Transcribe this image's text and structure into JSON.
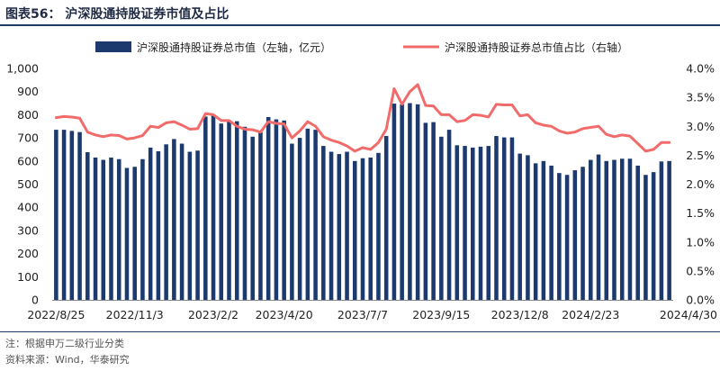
{
  "header": {
    "title": "图表56：   沪深股通持股证券市值及占比"
  },
  "footer": {
    "note": "注：根据申万二级行业分类",
    "source": "资料来源：Wind，华泰研究"
  },
  "colors": {
    "bar": "#1c3a6e",
    "line": "#f26b6b",
    "axis": "#888888",
    "rule": "#1f3864"
  },
  "chart_data": {
    "type": "bar+line",
    "x_tick_labels": [
      "2022/8/25",
      "2022/11/3",
      "2023/2/2",
      "2023/4/20",
      "2023/7/7",
      "2023/9/15",
      "2023/12/8",
      "2024/2/23",
      "2024/4/30"
    ],
    "left_axis": {
      "ylim": [
        0,
        1000
      ],
      "ticks": [
        "0",
        "100",
        "200",
        "300",
        "400",
        "500",
        "600",
        "700",
        "800",
        "900",
        "1,000"
      ]
    },
    "right_axis": {
      "ylim": [
        0,
        4.0
      ],
      "ticks": [
        "0.0%",
        "0.5%",
        "1.0%",
        "1.5%",
        "2.0%",
        "2.5%",
        "3.0%",
        "3.5%",
        "4.0%"
      ]
    },
    "legend_position": "top",
    "series": [
      {
        "name": "沪深股通持股证券总市值（左轴，亿元）",
        "type": "bar",
        "axis": "left",
        "values": [
          735,
          735,
          730,
          725,
          638,
          615,
          605,
          615,
          608,
          570,
          575,
          608,
          658,
          642,
          672,
          695,
          675,
          640,
          645,
          792,
          800,
          762,
          775,
          772,
          748,
          705,
          725,
          790,
          780,
          775,
          675,
          700,
          740,
          735,
          665,
          640,
          630,
          640,
          600,
          612,
          615,
          635,
          708,
          848,
          845,
          850,
          845,
          765,
          768,
          705,
          735,
          668,
          665,
          658,
          662,
          665,
          708,
          702,
          702,
          632,
          625,
          590,
          600,
          580,
          548,
          540,
          560,
          575,
          605,
          628,
          600,
          605,
          610,
          610,
          580,
          540,
          552,
          598,
          600
        ]
      },
      {
        "name": "沪深股通持股证券总市值占比（右轴）",
        "type": "line",
        "axis": "right",
        "values": [
          3.15,
          3.17,
          3.16,
          3.14,
          2.9,
          2.85,
          2.82,
          2.85,
          2.84,
          2.78,
          2.8,
          2.84,
          3.0,
          2.98,
          3.06,
          3.08,
          3.02,
          2.95,
          2.96,
          3.22,
          3.2,
          3.1,
          3.1,
          3.0,
          2.95,
          2.94,
          2.9,
          3.08,
          3.05,
          3.04,
          2.8,
          2.92,
          3.08,
          3.0,
          2.82,
          2.76,
          2.72,
          2.66,
          2.57,
          2.63,
          2.6,
          2.72,
          2.95,
          3.65,
          3.38,
          3.6,
          3.72,
          3.36,
          3.35,
          3.2,
          3.2,
          3.08,
          3.1,
          3.2,
          3.19,
          3.16,
          3.38,
          3.37,
          3.37,
          3.18,
          3.2,
          3.06,
          3.02,
          3.0,
          2.92,
          2.88,
          2.9,
          2.96,
          2.98,
          3.0,
          2.86,
          2.82,
          2.85,
          2.83,
          2.7,
          2.57,
          2.6,
          2.72,
          2.72
        ]
      }
    ]
  }
}
